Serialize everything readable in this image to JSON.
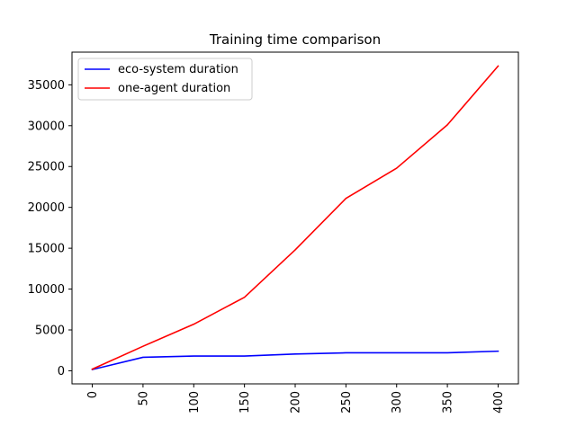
{
  "chart_data": {
    "type": "line",
    "title": "Training time comparison",
    "xlabel": "",
    "ylabel": "",
    "x": [
      0,
      50,
      100,
      150,
      200,
      250,
      300,
      350,
      400
    ],
    "xlim": [
      -20,
      420
    ],
    "ylim": [
      -1600,
      39000
    ],
    "x_ticks": [
      0,
      50,
      100,
      150,
      200,
      250,
      300,
      350,
      400
    ],
    "y_ticks": [
      0,
      5000,
      10000,
      15000,
      20000,
      25000,
      30000,
      35000
    ],
    "x_tick_rotation": "vertical",
    "grid": false,
    "legend_position": "upper-left",
    "series": [
      {
        "name": "eco-system duration",
        "color": "#0000ff",
        "values": [
          150,
          1650,
          1800,
          1800,
          2050,
          2200,
          2200,
          2200,
          2400
        ]
      },
      {
        "name": "one-agent duration",
        "color": "#ff0000",
        "values": [
          200,
          3000,
          5700,
          9000,
          14800,
          21100,
          24800,
          30100,
          37300
        ]
      }
    ]
  }
}
